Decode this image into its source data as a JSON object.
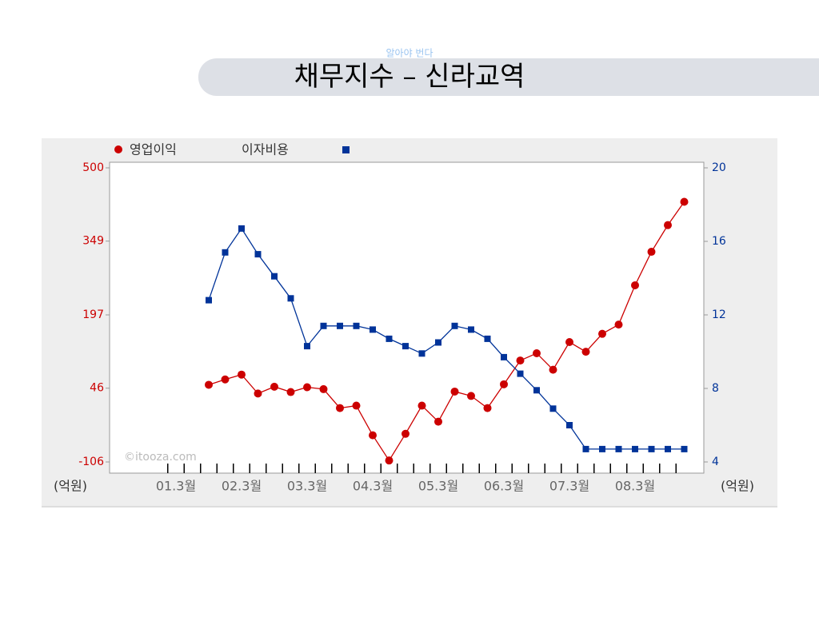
{
  "slide": {
    "tagline": "알아야 번다",
    "title": "채무지수 – 신라교역"
  },
  "chart_data": {
    "type": "line",
    "categories": [
      "01.3월",
      null,
      null,
      null,
      "02.3월",
      null,
      null,
      null,
      "03.3월",
      null,
      null,
      null,
      "04.3월",
      null,
      null,
      null,
      "05.3월",
      null,
      null,
      null,
      "06.3월",
      null,
      null,
      null,
      "07.3월",
      null,
      null,
      null,
      "08.3월",
      null,
      null,
      null
    ],
    "series": [
      {
        "name": "영업이익",
        "color": "#cc0000",
        "marker": "circle",
        "values": [
          null,
          null,
          53,
          64,
          74,
          35,
          49,
          38,
          48,
          44,
          5,
          10,
          -51,
          -103,
          -48,
          10,
          -23,
          39,
          30,
          5,
          54,
          103,
          118,
          84,
          141,
          121,
          158,
          177,
          258,
          327,
          382,
          430
        ]
      },
      {
        "name": "이자비용",
        "color": "#003399",
        "marker": "square",
        "axis": "y2",
        "values": [
          null,
          null,
          12.8,
          15.4,
          16.7,
          15.3,
          14.1,
          12.9,
          10.3,
          11.4,
          11.4,
          11.4,
          11.2,
          10.7,
          10.3,
          9.9,
          10.5,
          11.4,
          11.2,
          10.7,
          9.7,
          8.8,
          7.9,
          6.9,
          6.0,
          4.7,
          4.7,
          4.7,
          4.7,
          4.7,
          4.7,
          4.7
        ]
      }
    ],
    "ylim": [
      -106,
      500
    ],
    "yticks": [
      -106,
      46,
      197,
      349,
      500
    ],
    "y2lim": [
      4,
      20
    ],
    "y2ticks": [
      4,
      8,
      12,
      16,
      20
    ],
    "ylabel": "(억원)",
    "y2label": "(억원)",
    "watermark": "©itooza.com",
    "legend": "top-left"
  }
}
